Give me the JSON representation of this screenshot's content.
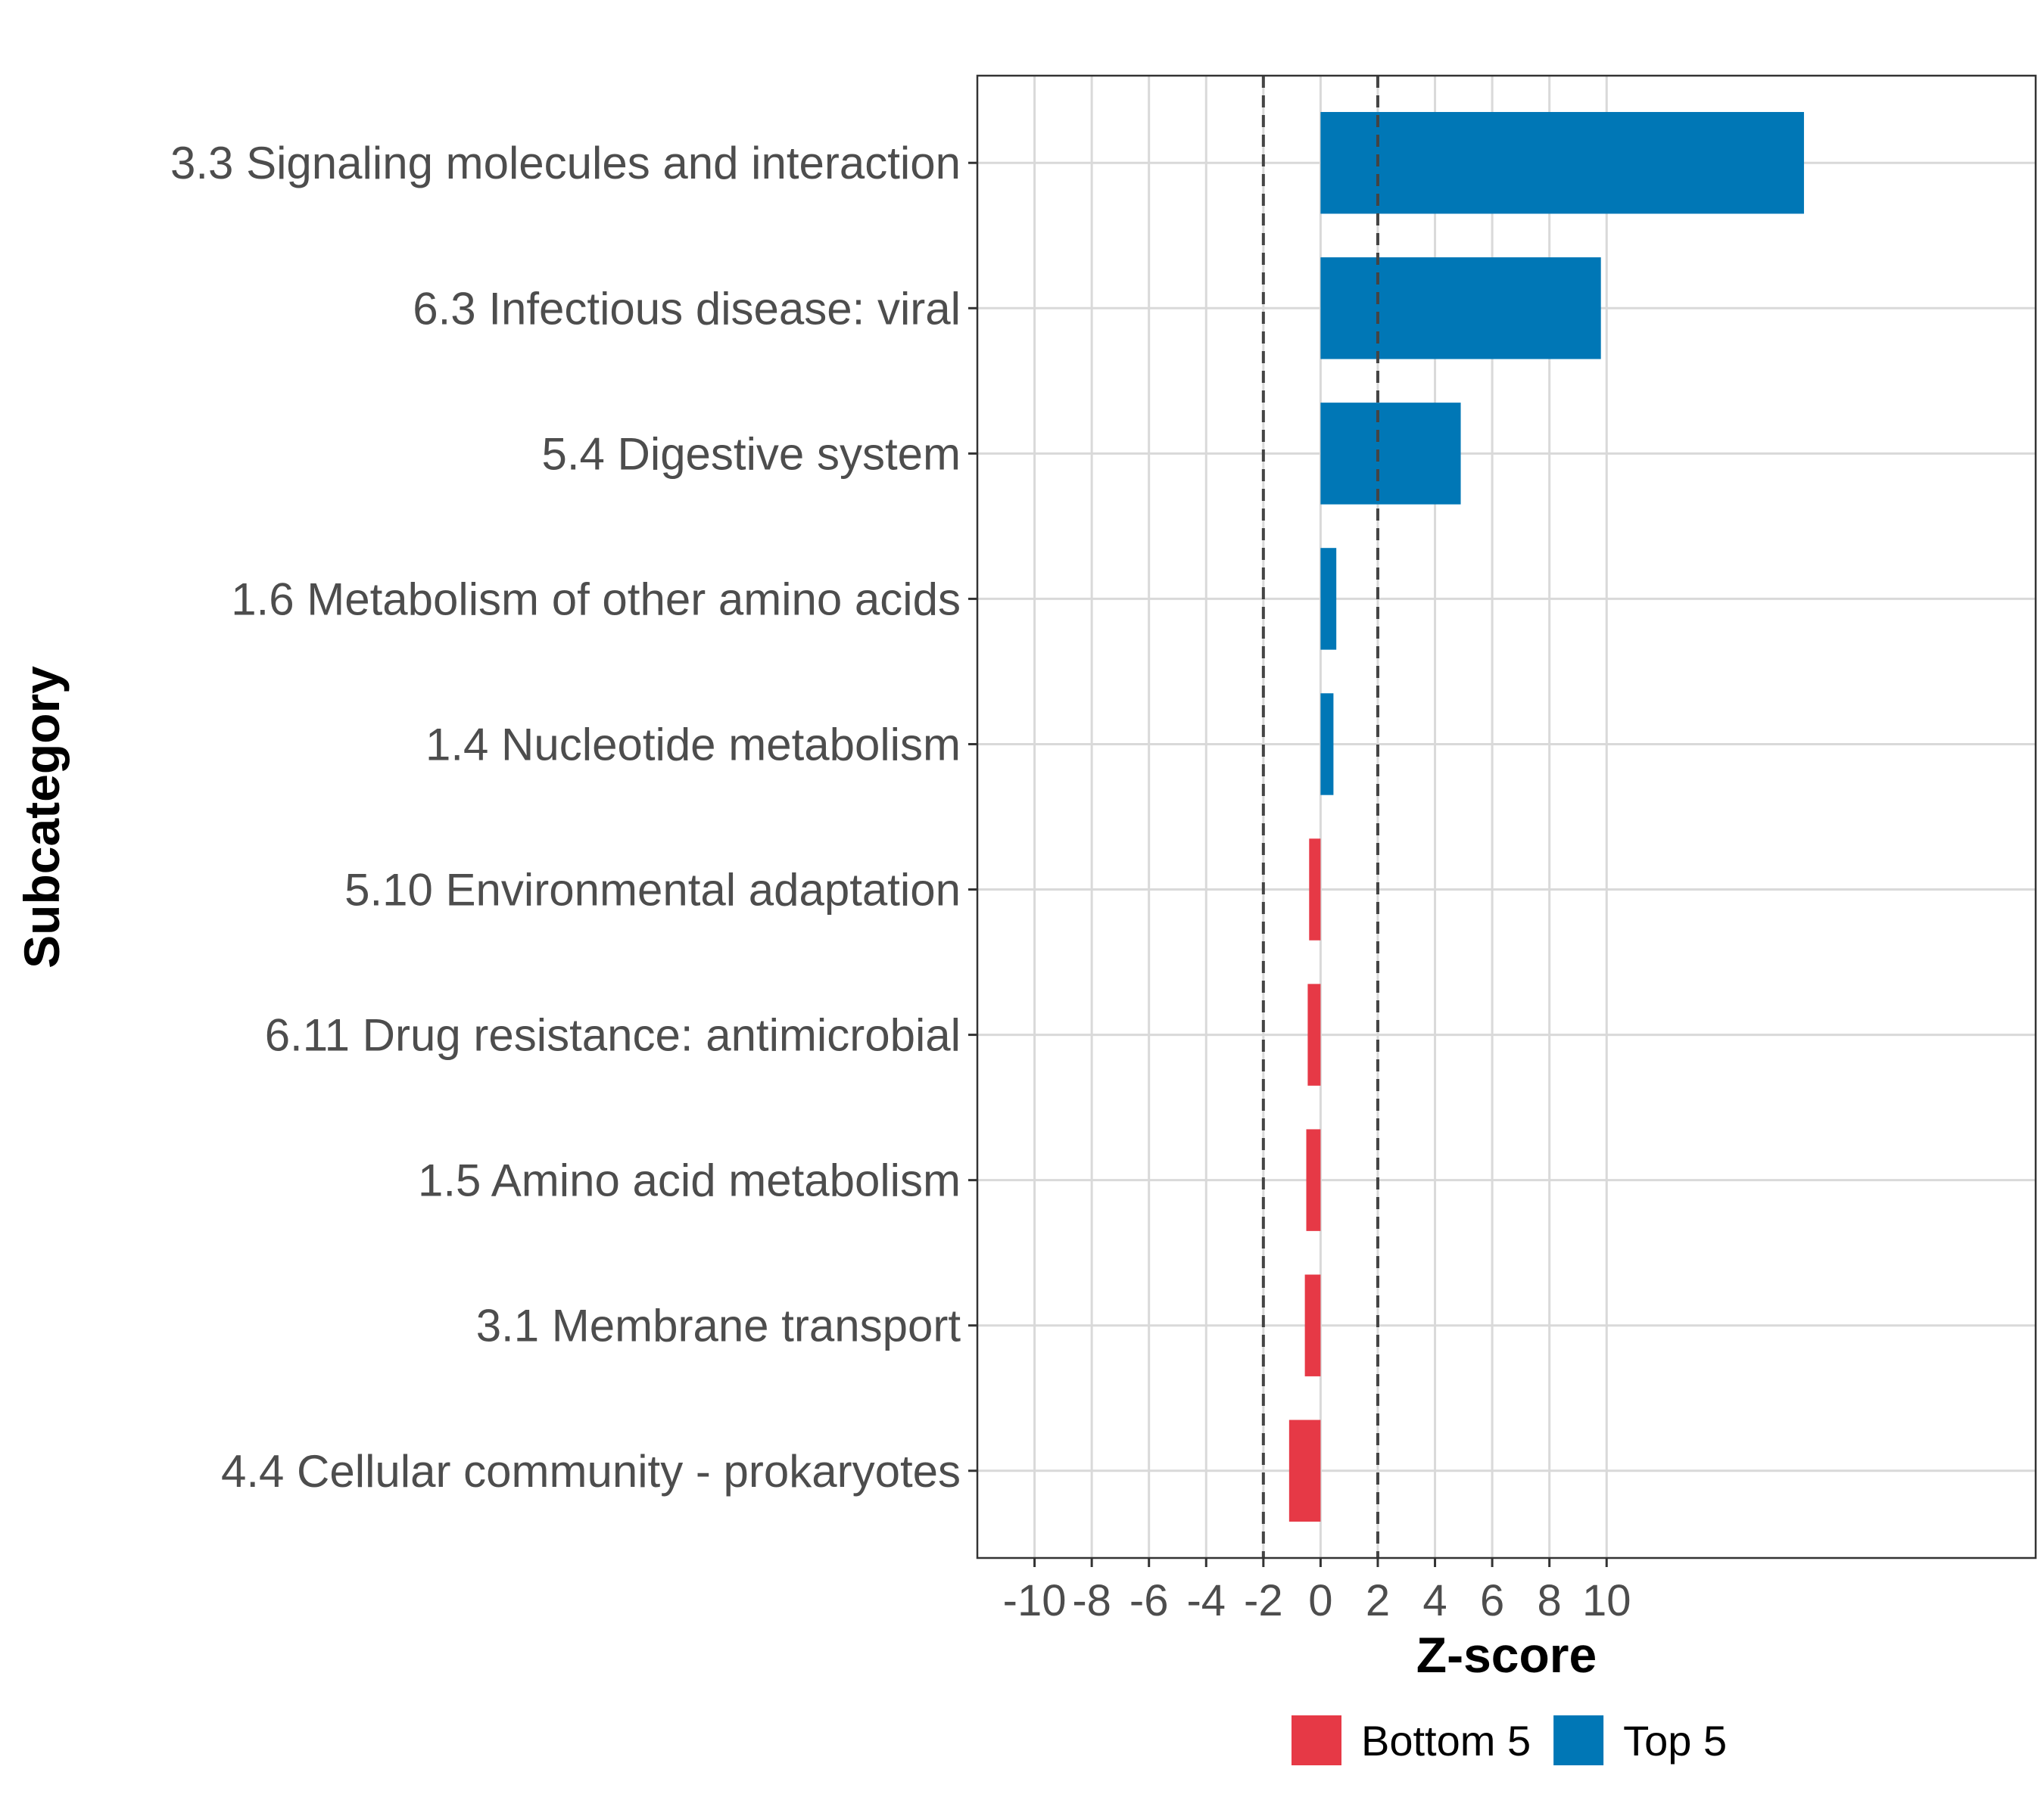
{
  "chart_data": {
    "type": "bar",
    "orientation": "horizontal",
    "title": "",
    "xlabel": "Z-score",
    "ylabel": "Subcategory",
    "xlim": [
      -12,
      25
    ],
    "xticks": [
      -10,
      -8,
      -6,
      -4,
      -2,
      0,
      2,
      4,
      6,
      8,
      10
    ],
    "xtick_labels": [
      "-10",
      "-8",
      "-6",
      "-4",
      "-2",
      "0",
      "2",
      "4",
      "6",
      "8",
      "10"
    ],
    "threshold_lines": [
      -2,
      2
    ],
    "grid": true,
    "legend_position": "bottom",
    "categories": [
      "3.3 Signaling molecules and interaction",
      "6.3 Infectious disease: viral",
      "5.4 Digestive system",
      "1.6 Metabolism of other amino acids",
      "1.4 Nucleotide metabolism",
      "5.10 Environmental adaptation",
      "6.11 Drug resistance: antimicrobial",
      "1.5 Amino acid metabolism",
      "3.1 Membrane transport",
      "4.4 Cellular community - prokaryotes"
    ],
    "values": [
      16.9,
      9.8,
      4.9,
      0.55,
      0.45,
      -0.4,
      -0.45,
      -0.5,
      -0.55,
      -1.1
    ],
    "groups": [
      "Top 5",
      "Top 5",
      "Top 5",
      "Top 5",
      "Top 5",
      "Bottom 5",
      "Bottom 5",
      "Bottom 5",
      "Bottom 5",
      "Bottom 5"
    ],
    "series": [
      {
        "name": "Bottom 5",
        "color": "#e63946"
      },
      {
        "name": "Top 5",
        "color": "#0077b6"
      }
    ]
  }
}
